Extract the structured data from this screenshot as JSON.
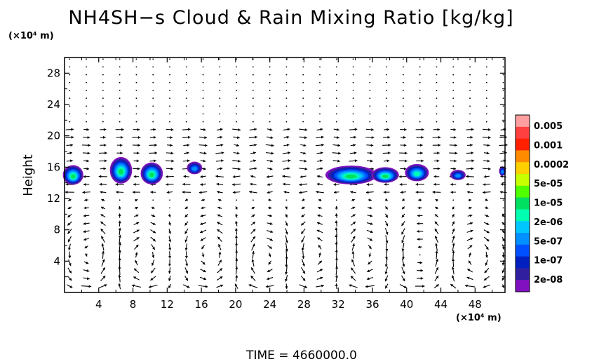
{
  "chart_data": {
    "type": "heatmap",
    "title": "NH4SH−s Cloud & Rain Mixing Ratio [kg/kg]",
    "ylabel": "Height",
    "y_unit": "(×10⁴ m)",
    "x_unit": "(×10⁴ m)",
    "x_ticks": [
      4,
      8,
      12,
      16,
      20,
      24,
      28,
      32,
      36,
      40,
      44,
      48
    ],
    "y_ticks": [
      4,
      8,
      12,
      16,
      20,
      24,
      28
    ],
    "xlim": [
      0,
      51.5
    ],
    "ylim": [
      0,
      30
    ],
    "colorbar": {
      "labels": [
        "0.005",
        "0.001",
        "0.0002",
        "5e-05",
        "1e-05",
        "2e-06",
        "5e-07",
        "1e-07",
        "2e-08"
      ],
      "colors": [
        "#ff9f9f",
        "#ff4040",
        "#ff2000",
        "#ff8c00",
        "#ffd000",
        "#c8ff00",
        "#50ff00",
        "#00e060",
        "#00ffb0",
        "#00c8ff",
        "#0090ff",
        "#0050ff",
        "#0020c0",
        "#3020a0",
        "#8010c0"
      ]
    },
    "cloud_blobs": [
      {
        "x": 1.0,
        "y": 15.0,
        "w": 2.4,
        "h": 2.5,
        "level": 0.85
      },
      {
        "x": 6.6,
        "y": 15.6,
        "w": 2.6,
        "h": 3.4,
        "level": 0.9
      },
      {
        "x": 10.2,
        "y": 15.2,
        "w": 2.6,
        "h": 2.8,
        "level": 0.85
      },
      {
        "x": 15.2,
        "y": 15.9,
        "w": 1.8,
        "h": 1.6,
        "level": 0.55
      },
      {
        "x": 33.5,
        "y": 15.0,
        "w": 6.0,
        "h": 2.4,
        "level": 0.9
      },
      {
        "x": 37.5,
        "y": 15.0,
        "w": 3.2,
        "h": 2.0,
        "level": 0.85
      },
      {
        "x": 41.2,
        "y": 15.3,
        "w": 2.8,
        "h": 2.2,
        "level": 0.75
      },
      {
        "x": 46.0,
        "y": 15.0,
        "w": 1.8,
        "h": 1.3,
        "level": 0.6
      },
      {
        "x": 51.2,
        "y": 15.5,
        "w": 0.8,
        "h": 1.2,
        "level": 0.55
      }
    ],
    "circulation_cells": [
      {
        "x": 3.0,
        "y": 5.0,
        "rx": 3.2,
        "ry": 4.5,
        "sign": 1
      },
      {
        "x": 9.0,
        "y": 4.5,
        "rx": 2.8,
        "ry": 4.0,
        "sign": -1
      },
      {
        "x": 17.0,
        "y": 5.0,
        "rx": 3.0,
        "ry": 4.2,
        "sign": 1
      },
      {
        "x": 23.5,
        "y": 4.5,
        "rx": 2.8,
        "ry": 4.0,
        "sign": -1
      },
      {
        "x": 29.5,
        "y": 5.0,
        "rx": 2.8,
        "ry": 4.0,
        "sign": 1
      },
      {
        "x": 35.0,
        "y": 5.0,
        "rx": 3.2,
        "ry": 4.2,
        "sign": -1
      },
      {
        "x": 41.5,
        "y": 5.0,
        "rx": 2.8,
        "ry": 4.0,
        "sign": 1
      },
      {
        "x": 48.0,
        "y": 4.5,
        "rx": 2.8,
        "ry": 4.0,
        "sign": -1
      }
    ]
  },
  "time_label": "TIME  =  4660000.0"
}
